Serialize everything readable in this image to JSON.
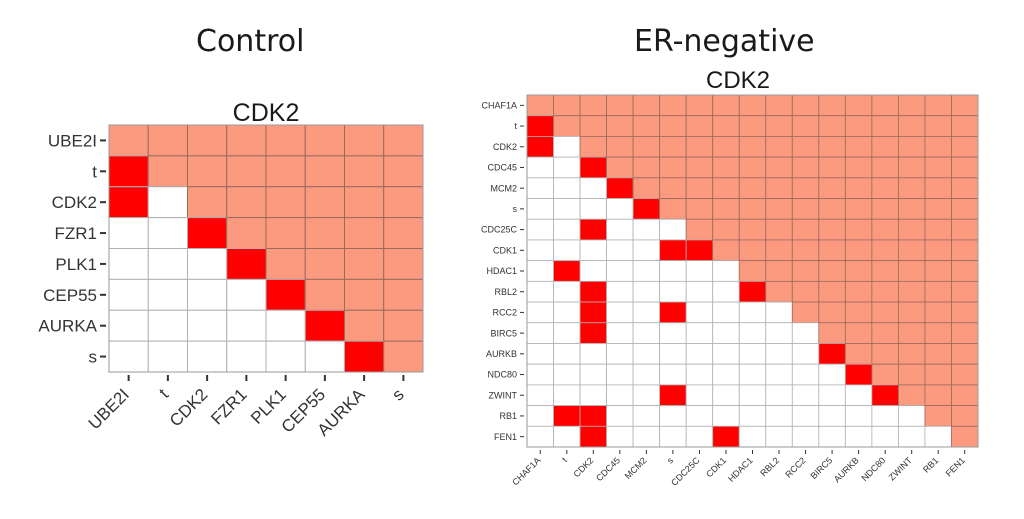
{
  "panels": {
    "left_title": "Control",
    "right_title": "ER-negative"
  },
  "colors": {
    "upper": "#fc9a80",
    "edge": "#ff0000",
    "empty": "#ffffff",
    "grid": "#888888"
  },
  "chart_data": [
    {
      "type": "heatmap",
      "panel": "Control",
      "title": "CDK2",
      "xlabel": "",
      "ylabel": "",
      "labels": [
        "UBE2I",
        "t",
        "CDK2",
        "FZR1",
        "PLK1",
        "CEP55",
        "AURKA",
        "s"
      ],
      "encoding": "lower triangle: 1 = edge (red), 0 = none (white); diagonal and upper triangle shaded salmon",
      "edges": [
        [
          "t",
          "UBE2I"
        ],
        [
          "CDK2",
          "UBE2I"
        ],
        [
          "FZR1",
          "CDK2"
        ],
        [
          "PLK1",
          "FZR1"
        ],
        [
          "CEP55",
          "PLK1"
        ],
        [
          "AURKA",
          "CEP55"
        ],
        [
          "s",
          "AURKA"
        ]
      ]
    },
    {
      "type": "heatmap",
      "panel": "ER-negative",
      "title": "CDK2",
      "xlabel": "",
      "ylabel": "",
      "labels": [
        "CHAF1A",
        "t",
        "CDK2",
        "CDC45",
        "MCM2",
        "s",
        "CDC25C",
        "CDK1",
        "HDAC1",
        "RBL2",
        "RCC2",
        "BIRC5",
        "AURKB",
        "NDC80",
        "ZWINT",
        "RB1",
        "FEN1"
      ],
      "encoding": "lower triangle: 1 = edge (red), 0 = none (white); diagonal and upper triangle shaded salmon",
      "edges": [
        [
          "t",
          "CHAF1A"
        ],
        [
          "CDK2",
          "CHAF1A"
        ],
        [
          "CDC45",
          "CDK2"
        ],
        [
          "MCM2",
          "CDC45"
        ],
        [
          "s",
          "MCM2"
        ],
        [
          "CDC25C",
          "CDK2"
        ],
        [
          "CDK1",
          "s"
        ],
        [
          "CDK1",
          "CDC25C"
        ],
        [
          "HDAC1",
          "t"
        ],
        [
          "RBL2",
          "CDK2"
        ],
        [
          "RBL2",
          "HDAC1"
        ],
        [
          "RCC2",
          "CDK2"
        ],
        [
          "RCC2",
          "s"
        ],
        [
          "BIRC5",
          "CDK2"
        ],
        [
          "AURKB",
          "BIRC5"
        ],
        [
          "NDC80",
          "AURKB"
        ],
        [
          "ZWINT",
          "s"
        ],
        [
          "ZWINT",
          "NDC80"
        ],
        [
          "RB1",
          "t"
        ],
        [
          "RB1",
          "CDK2"
        ],
        [
          "FEN1",
          "CDK2"
        ],
        [
          "FEN1",
          "CDK1"
        ]
      ]
    }
  ]
}
